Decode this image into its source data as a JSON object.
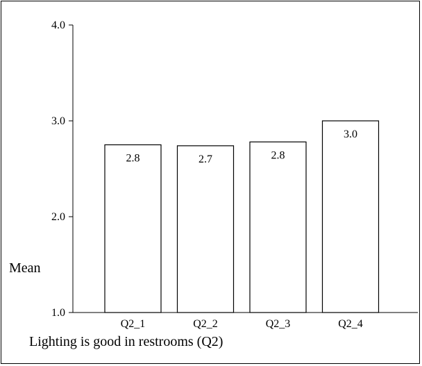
{
  "chart_data": {
    "type": "bar",
    "categories": [
      "Q2_1",
      "Q2_2",
      "Q2_3",
      "Q2_4"
    ],
    "values": [
      2.75,
      2.74,
      2.78,
      3.0
    ],
    "data_labels": [
      "2.8",
      "2.7",
      "2.8",
      "3.0"
    ],
    "xlabel": "Lighting is good in restrooms (Q2)",
    "ylabel": "Mean",
    "ylim": [
      1.0,
      4.0
    ],
    "yticks": [
      "1.0",
      "2.0",
      "3.0",
      "4.0"
    ],
    "grid": false,
    "colors": {
      "bar_fill": "#ffffff",
      "bar_stroke": "#000000",
      "axis": "#000000"
    }
  }
}
